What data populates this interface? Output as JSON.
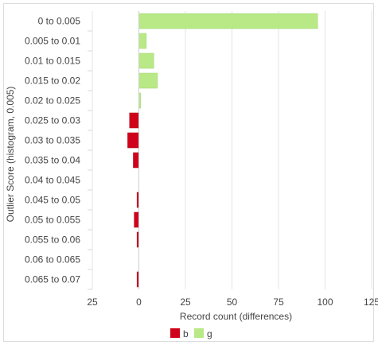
{
  "chart_data": {
    "type": "bar",
    "orientation": "horizontal",
    "categories": [
      "0 to 0.005",
      "0.005 to 0.01",
      "0.01 to 0.015",
      "0.015 to 0.02",
      "0.02 to 0.025",
      "0.025 to 0.03",
      "0.03 to 0.035",
      "0.035 to 0.04",
      "0.04 to 0.045",
      "0.045 to 0.05",
      "0.05 to 0.055",
      "0.055 to 0.06",
      "0.06 to 0.065",
      "0.065 to 0.07"
    ],
    "series": [
      {
        "name": "b",
        "color": "#d0021b",
        "values": [
          0,
          0,
          0,
          0,
          0,
          -5,
          -6,
          -3,
          0,
          -1,
          -2.5,
          -1,
          0,
          -1
        ]
      },
      {
        "name": "g",
        "color": "#b8e986",
        "values": [
          96,
          4,
          8,
          10,
          1,
          0,
          0,
          0,
          0,
          0,
          0,
          0,
          0,
          0
        ]
      }
    ],
    "xlabel": "Record count (differences)",
    "ylabel": "Outlier Score (histogram, 0.005)",
    "xlim": [
      -25,
      125
    ],
    "xticks": [
      -25,
      0,
      25,
      50,
      75,
      100,
      125
    ],
    "xtick_labels": [
      "25",
      "0",
      "25",
      "50",
      "75",
      "100",
      "125"
    ],
    "grid": true,
    "legend_position": "bottom"
  }
}
